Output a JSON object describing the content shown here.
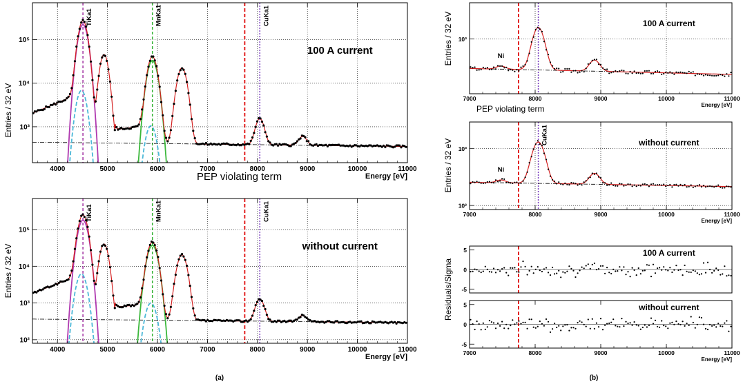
{
  "figure": {
    "label_a": "(a)",
    "label_b": "(b)",
    "pep_label": "PEP violating term"
  },
  "colors": {
    "fit": "#d42020",
    "data": "#000000",
    "pep_line": "#e01010",
    "cu_line": "#7a3fbf",
    "ti_line": "#a030a0",
    "mn_line": "#33b233",
    "ti_fit": "#b03ab0",
    "mn_fit": "#3cb83c",
    "escape": "#4cb8d8",
    "background": "#000000"
  },
  "chart_data": [
    {
      "id": "a-top",
      "type": "scatter",
      "title": "100 A current",
      "xlabel": "Energy [eV]",
      "ylabel": "Entries / 32 eV",
      "yscale": "log",
      "xlim": [
        3500,
        11000
      ],
      "ylim": [
        150,
        700000
      ],
      "xticks": [
        4000,
        5000,
        6000,
        7000,
        8000,
        9000,
        10000,
        11000
      ],
      "yticks": [
        {
          "v": 1000,
          "label": "10³"
        },
        {
          "v": 10000,
          "label": "10⁴"
        },
        {
          "v": 100000,
          "label": "10⁵"
        }
      ],
      "lines": [
        {
          "label": "TiKa1",
          "x": 4510
        },
        {
          "label": "MnKa1",
          "x": 5899
        },
        {
          "label": "CuKa1",
          "x": 8048
        }
      ],
      "pep_x": 7746,
      "grid": true,
      "bg": {
        "level": 400,
        "slope": -3e-05
      },
      "peaks": [
        {
          "x": 4510,
          "a": 270000,
          "s": 75
        },
        {
          "x": 4932,
          "a": 45000,
          "s": 70
        },
        {
          "x": 5899,
          "a": 40000,
          "s": 80
        },
        {
          "x": 6490,
          "a": 22000,
          "s": 80
        },
        {
          "x": 8048,
          "a": 1150,
          "s": 75
        },
        {
          "x": 8905,
          "a": 220,
          "s": 75
        }
      ],
      "shoulders": [
        {
          "from": 3500,
          "to": 4400,
          "y0": 2000,
          "y1": 5500
        },
        {
          "from": 5150,
          "to": 5700,
          "y0": 850,
          "y1": 1000
        }
      ],
      "components": {
        "ti_main": {
          "x": 4510,
          "a": 220000,
          "s": 80
        },
        "ti_esc": {
          "x": 4480,
          "a": 6800,
          "s": 85
        },
        "mn_main": {
          "x": 5899,
          "a": 33000,
          "s": 85
        },
        "mn_esc": {
          "x": 5870,
          "a": 1050,
          "s": 90
        }
      }
    },
    {
      "id": "a-bottom",
      "type": "scatter",
      "title": "without current",
      "xlabel": "Energy [eV]",
      "ylabel": "Entries / 32 eV",
      "yscale": "log",
      "xlim": [
        3500,
        11000
      ],
      "ylim": [
        80,
        700000
      ],
      "xticks": [
        4000,
        5000,
        6000,
        7000,
        8000,
        9000,
        10000,
        11000
      ],
      "yticks": [
        {
          "v": 100,
          "label": "10²"
        },
        {
          "v": 1000,
          "label": "10³"
        },
        {
          "v": 10000,
          "label": "10⁴"
        },
        {
          "v": 100000,
          "label": "10⁵"
        }
      ],
      "lines": [
        {
          "label": "TiKa1",
          "x": 4510
        },
        {
          "label": "MnKa1",
          "x": 5899
        },
        {
          "label": "CuKa1",
          "x": 8048
        }
      ],
      "pep_x": 7746,
      "grid": true,
      "bg": {
        "level": 330,
        "slope": -3e-05
      },
      "peaks": [
        {
          "x": 4510,
          "a": 250000,
          "s": 75
        },
        {
          "x": 4932,
          "a": 40000,
          "s": 70
        },
        {
          "x": 5899,
          "a": 45000,
          "s": 80
        },
        {
          "x": 6490,
          "a": 20000,
          "s": 80
        },
        {
          "x": 8048,
          "a": 950,
          "s": 75
        },
        {
          "x": 8905,
          "a": 150,
          "s": 75
        }
      ],
      "shoulders": [
        {
          "from": 3500,
          "to": 4400,
          "y0": 1800,
          "y1": 5500
        },
        {
          "from": 5150,
          "to": 5700,
          "y0": 750,
          "y1": 900
        }
      ],
      "components": {
        "ti_main": {
          "x": 4510,
          "a": 180000,
          "s": 80
        },
        "ti_esc": {
          "x": 4480,
          "a": 6200,
          "s": 85
        },
        "mn_main": {
          "x": 5899,
          "a": 37000,
          "s": 85
        },
        "mn_esc": {
          "x": 5870,
          "a": 1000,
          "s": 90
        }
      }
    },
    {
      "id": "b-top",
      "type": "scatter",
      "title": "100 A current",
      "xlabel": "Energy [eV]",
      "ylabel": "Entries / 32 eV",
      "yscale": "log",
      "xlim": [
        7000,
        11000
      ],
      "ylim": [
        200,
        2900
      ],
      "xticks": [
        7000,
        8000,
        9000,
        10000,
        11000
      ],
      "yticks": [
        {
          "v": 1000,
          "label": "10³"
        }
      ],
      "lines": [
        {
          "label": "",
          "x": 8048
        }
      ],
      "pep_x": 7746,
      "grid": true,
      "ni_label": "Ni",
      "ni_x": 7478,
      "bg": {
        "level": 420,
        "slope": -4e-05
      },
      "peaks": [
        {
          "x": 7478,
          "a": 40,
          "s": 70
        },
        {
          "x": 8048,
          "a": 1000,
          "s": 85
        },
        {
          "x": 8905,
          "a": 150,
          "s": 75
        }
      ],
      "shoulders": []
    },
    {
      "id": "b-mid",
      "type": "scatter",
      "title": "without current",
      "xlabel": "Energy [eV]",
      "ylabel": "Entries / 32 eV",
      "yscale": "log",
      "xlim": [
        7000,
        11000
      ],
      "ylim": [
        85,
        2900
      ],
      "xticks": [
        7000,
        8000,
        9000,
        10000,
        11000
      ],
      "yticks": [
        {
          "v": 100,
          "label": "10²"
        },
        {
          "v": 1000,
          "label": "10³"
        }
      ],
      "lines": [
        {
          "label": "CuKa1",
          "x": 8048
        }
      ],
      "pep_x": 7746,
      "grid": true,
      "ni_label": "Ni",
      "ni_x": 7478,
      "bg": {
        "level": 255,
        "slope": -4e-05
      },
      "peaks": [
        {
          "x": 7478,
          "a": 30,
          "s": 70
        },
        {
          "x": 8048,
          "a": 1050,
          "s": 85
        },
        {
          "x": 8905,
          "a": 130,
          "s": 75
        }
      ],
      "shoulders": []
    },
    {
      "id": "b-res-top",
      "type": "scatter",
      "title": "100 A current",
      "xlabel": "",
      "ylabel": "Residuals/Sigma",
      "yscale": "linear",
      "xlim": [
        7000,
        11000
      ],
      "ylim": [
        -6,
        6
      ],
      "xticks": [],
      "yticks": [
        {
          "v": -5,
          "label": "-5"
        },
        {
          "v": 0,
          "label": "0"
        },
        {
          "v": 5,
          "label": "5"
        }
      ],
      "pep_x": 7746,
      "grid": false,
      "residual": true,
      "seed": 7
    },
    {
      "id": "b-res-bot",
      "type": "scatter",
      "title": "without current",
      "xlabel": "Energy [eV]",
      "ylabel": "",
      "yscale": "linear",
      "xlim": [
        7000,
        11000
      ],
      "ylim": [
        -6,
        6
      ],
      "xticks": [
        7000,
        8000,
        9000,
        10000,
        11000
      ],
      "yticks": [
        {
          "v": -5,
          "label": "-5"
        },
        {
          "v": 0,
          "label": "0"
        },
        {
          "v": 5,
          "label": "5"
        }
      ],
      "pep_x": 7746,
      "grid": false,
      "residual": true,
      "seed": 13
    }
  ]
}
